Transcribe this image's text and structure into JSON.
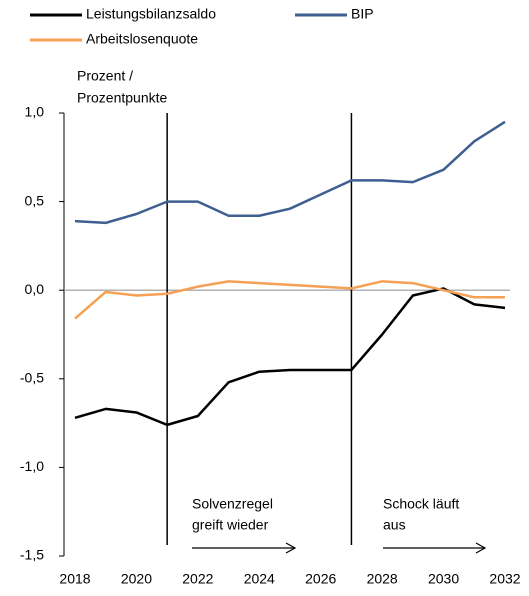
{
  "chart_data": {
    "type": "line",
    "ylabel": [
      "Prozent /",
      "Prozentpunkte"
    ],
    "x": [
      2018,
      2019,
      2020,
      2021,
      2022,
      2023,
      2024,
      2025,
      2026,
      2027,
      2028,
      2029,
      2030,
      2031,
      2032
    ],
    "series": [
      {
        "name": "Leistungsbilanzsaldo",
        "color": "#000000",
        "values": [
          -0.72,
          -0.67,
          -0.69,
          -0.76,
          -0.71,
          -0.52,
          -0.46,
          -0.45,
          -0.45,
          -0.45,
          -0.25,
          -0.03,
          0.01,
          -0.08,
          -0.1
        ]
      },
      {
        "name": "BIP",
        "color": "#3f5f91",
        "values": [
          0.39,
          0.38,
          0.43,
          0.5,
          0.5,
          0.42,
          0.42,
          0.46,
          0.54,
          0.62,
          0.62,
          0.61,
          0.68,
          0.84,
          0.95
        ]
      },
      {
        "name": "Arbeitslosenquote",
        "color": "#f5a055",
        "values": [
          -0.16,
          -0.01,
          -0.03,
          -0.02,
          0.02,
          0.05,
          0.04,
          0.03,
          0.02,
          0.01,
          0.05,
          0.04,
          0.0,
          -0.04,
          -0.04
        ]
      }
    ],
    "xlim": [
      2018,
      2032
    ],
    "xticks": [
      2018,
      2020,
      2022,
      2024,
      2026,
      2028,
      2030,
      2032
    ],
    "ylim": [
      -1.5,
      1.0
    ],
    "yticks": [
      {
        "value": -1.5,
        "label": "-1,5"
      },
      {
        "value": -1.0,
        "label": "-1,0"
      },
      {
        "value": -0.5,
        "label": "-0,5"
      },
      {
        "value": 0,
        "label": "0,0"
      },
      {
        "value": 0.5,
        "label": "0,5"
      },
      {
        "value": 1.0,
        "label": "1,0"
      }
    ],
    "vlines": [
      2021,
      2027
    ],
    "annotations": [
      [
        "Solvenzregel",
        "greift wieder"
      ],
      [
        "Schock läuft",
        "aus"
      ]
    ]
  }
}
